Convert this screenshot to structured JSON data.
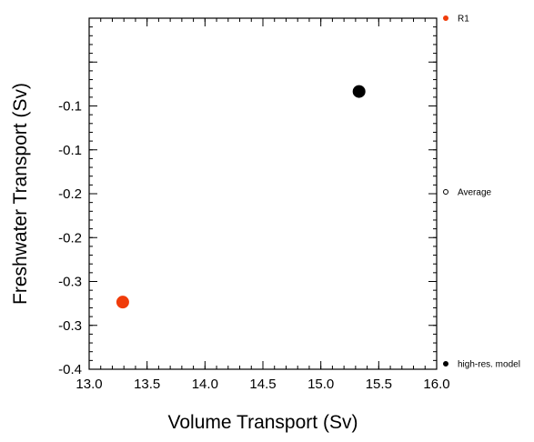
{
  "chart_data": {
    "type": "scatter",
    "title": "",
    "xlabel": "Volume Transport (Sv)",
    "ylabel": "Freshwater Transport (Sv)",
    "xlim": [
      13.0,
      16.0
    ],
    "ylim": [
      -0.4,
      0.0
    ],
    "x_ticks": [
      13.0,
      13.5,
      14.0,
      14.5,
      15.0,
      15.5,
      16.0
    ],
    "x_tick_labels": [
      "13.0",
      "13.5",
      "14.0",
      "14.5",
      "15.0",
      "15.5",
      "16.0"
    ],
    "y_ticks": [
      -0.4,
      -0.35,
      -0.3,
      -0.25,
      -0.2,
      -0.15,
      -0.1,
      -0.05
    ],
    "y_tick_labels": [
      "-0.4",
      "-0.3",
      "-0.3",
      "-0.2",
      "-0.2",
      "-0.1",
      "-0.1",
      ""
    ],
    "grid": false,
    "legend_position": "right",
    "series": [
      {
        "name": "R1",
        "color": "#f03c0a",
        "filled": true,
        "x": [
          13.29
        ],
        "y": [
          -0.3235
        ]
      },
      {
        "name": "Average",
        "color": "#000000",
        "filled": false,
        "x": [],
        "y": []
      },
      {
        "name": "high-res. model",
        "color": "#000000",
        "filled": true,
        "x": [
          15.33
        ],
        "y": [
          -0.0835
        ]
      }
    ]
  }
}
